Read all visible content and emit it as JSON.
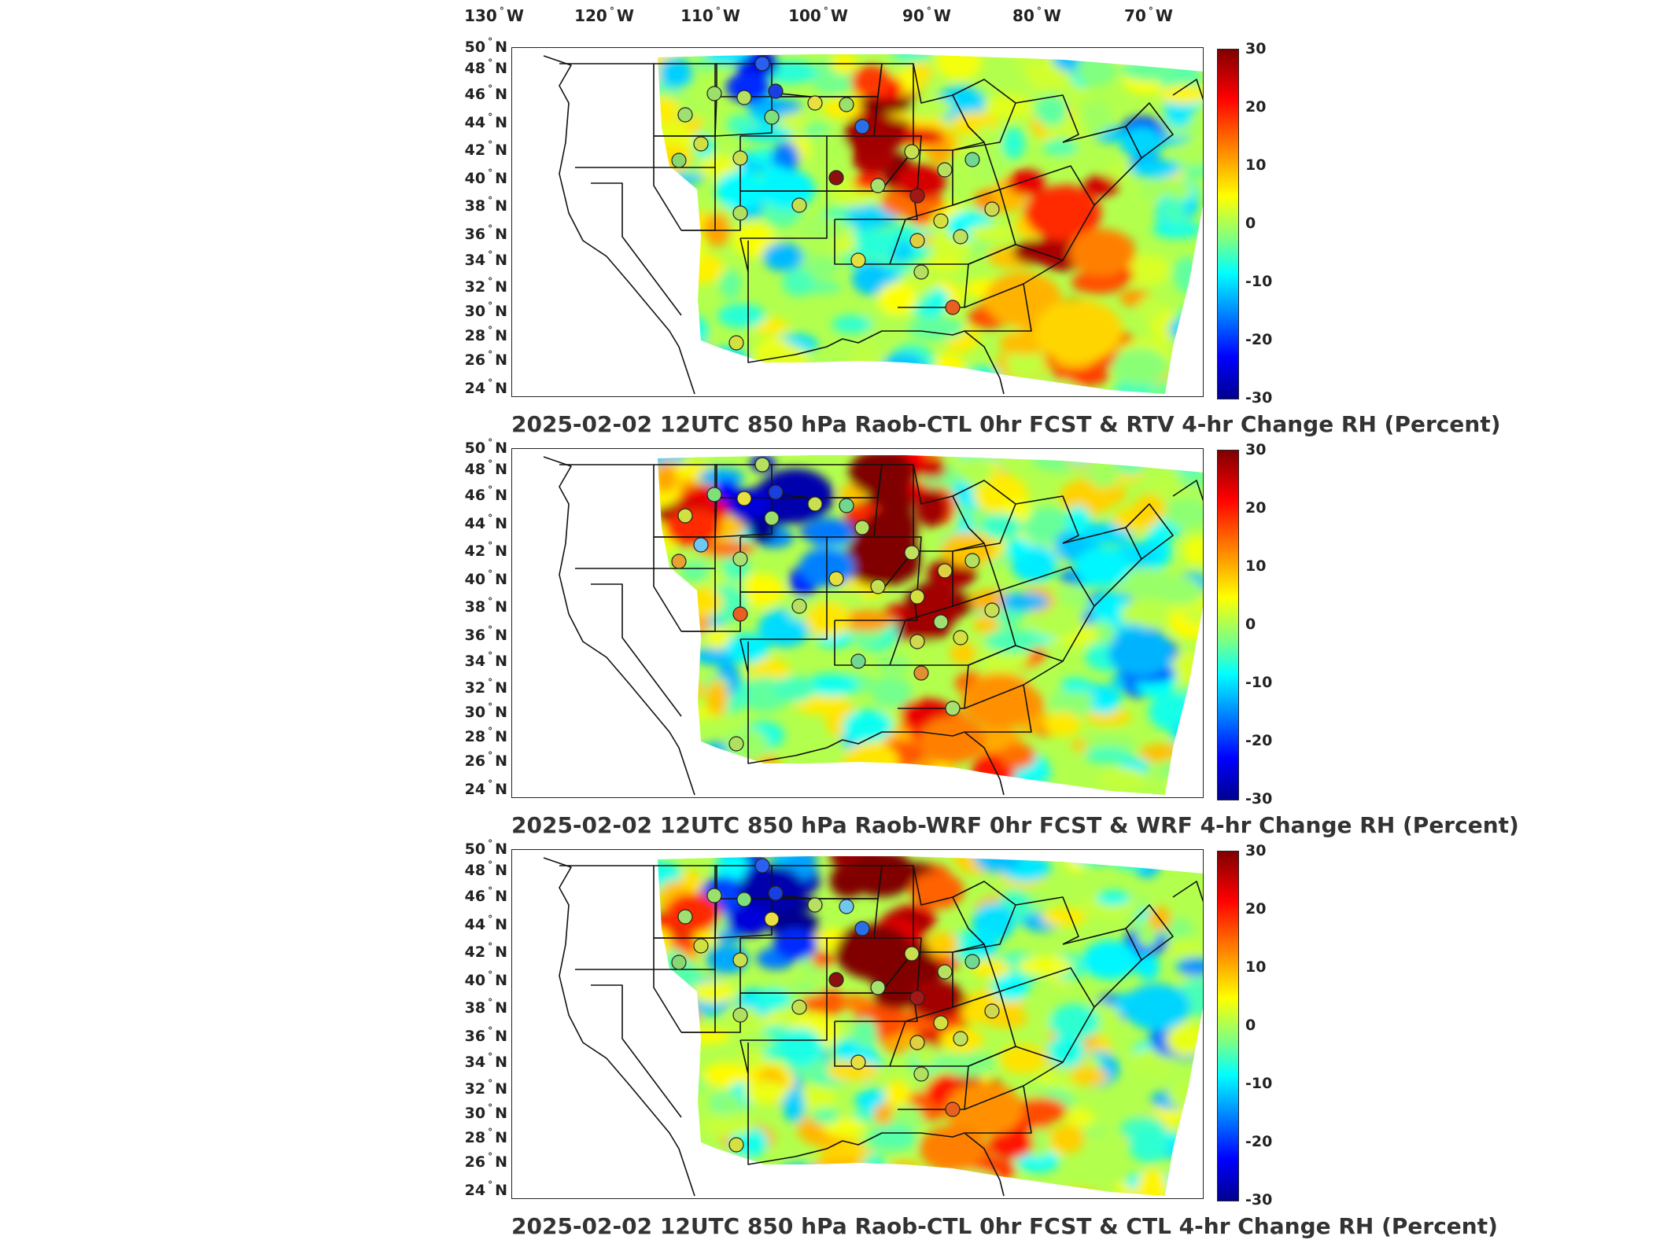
{
  "longitude_labels": [
    "130",
    "120",
    "110",
    "100",
    "90",
    "80",
    "70"
  ],
  "longitude_suffix": "W",
  "latitude_labels": [
    "50",
    "48",
    "46",
    "44",
    "42",
    "40",
    "38",
    "36",
    "34",
    "32",
    "30",
    "28",
    "26",
    "24"
  ],
  "latitude_suffix": "N",
  "degree_symbol": "°",
  "colorbar": {
    "ticks": [
      "30",
      "20",
      "10",
      "0",
      "-10",
      "-20",
      "-30"
    ],
    "range": [
      -30,
      30
    ],
    "colormap": "jet",
    "colors": [
      "#00008f",
      "#0000ff",
      "#0080ff",
      "#00ffff",
      "#80ff80",
      "#ffff00",
      "#ff8000",
      "#ff0000",
      "#800000"
    ]
  },
  "panels": [
    {
      "title": "2025-02-02 12UTC 850 hPa Raob-CTL 0hr FCST & RTV 4-hr Change RH (Percent)",
      "variant": 0
    },
    {
      "title": "2025-02-02 12UTC 850 hPa Raob-WRF 0hr FCST & WRF 4-hr Change RH (Percent)",
      "variant": 1
    },
    {
      "title": "2025-02-02 12UTC 850 hPa Raob-CTL 0hr FCST & CTL 4-hr Change RH (Percent)",
      "variant": 2
    }
  ],
  "station_colors": {
    "panel0": [
      "#1a3fe0",
      "#2a5ff0",
      "#9be06b",
      "#b6e060",
      "#7fe07a",
      "#e8e040",
      "#9be06b",
      "#a0e070",
      "#8ad870",
      "#2a6fe8",
      "#c8e050",
      "#d0e040",
      "#a8e070",
      "#b0e060",
      "#c4e050",
      "#8b1010",
      "#a01818",
      "#c8e050",
      "#e0d040",
      "#b8e060",
      "#70d890",
      "#d4e040",
      "#e4e040",
      "#b4e060",
      "#c0e060",
      "#d0d850",
      "#e86020",
      "#d4e040"
    ],
    "panel1": [
      "#1a3fe0",
      "#b6e060",
      "#7fe07a",
      "#e8e040",
      "#9be06b",
      "#c8e050",
      "#70d890",
      "#d0e040",
      "#e8a030",
      "#b0e060",
      "#a8e070",
      "#70c8f0",
      "#c4e050",
      "#e86020",
      "#b8e060",
      "#e4e040",
      "#d4e040",
      "#c0e060",
      "#d0d850",
      "#e0d040",
      "#b4e060",
      "#a0e070",
      "#70d890",
      "#e09030",
      "#d4e040",
      "#c8e050",
      "#a8e070",
      "#b0e060"
    ],
    "panel2": [
      "#1a3fe0",
      "#2a5ff0",
      "#9be06b",
      "#7fe07a",
      "#e8e040",
      "#b6e060",
      "#70c8f0",
      "#a0e070",
      "#8ad870",
      "#2a6fe8",
      "#c8e050",
      "#d0e040",
      "#a8e070",
      "#b0e060",
      "#c4e050",
      "#8b1010",
      "#a01818",
      "#c8e050",
      "#e0d040",
      "#b8e060",
      "#70d890",
      "#d4e040",
      "#e4e040",
      "#b4e060",
      "#c0e060",
      "#d0d850",
      "#e86020",
      "#d4e040"
    ]
  }
}
